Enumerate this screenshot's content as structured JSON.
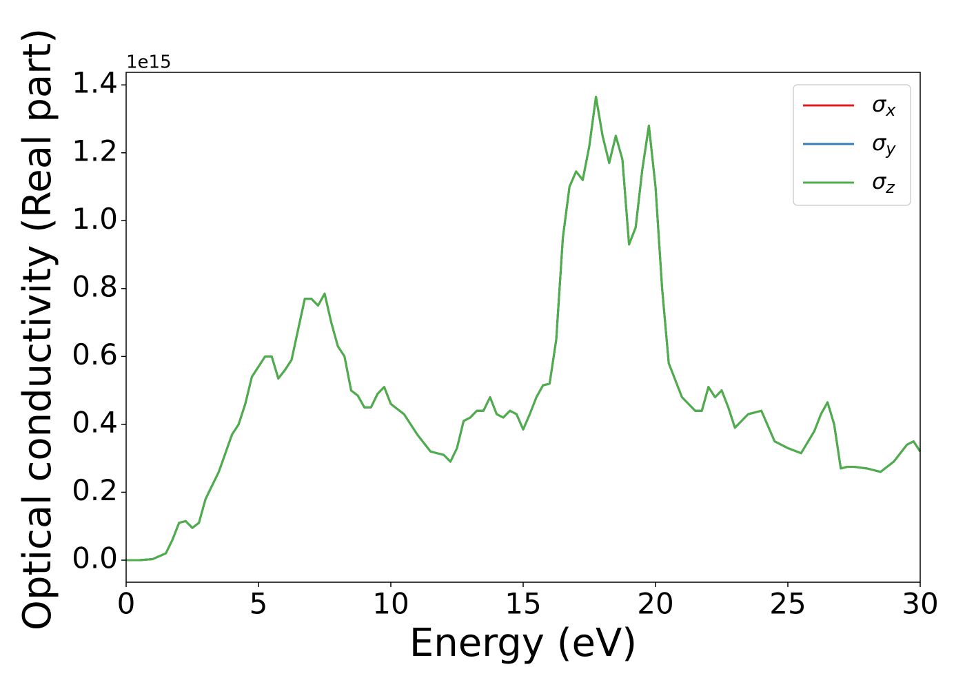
{
  "chart_data": {
    "type": "line",
    "xlabel": "Energy (eV)",
    "ylabel": "Optical conductivity (Real part)",
    "y_offset_label": "1e15",
    "x": [
      0,
      0.5,
      1,
      1.5,
      1.75,
      2,
      2.25,
      2.5,
      2.75,
      3,
      3.5,
      4,
      4.25,
      4.5,
      4.75,
      5,
      5.25,
      5.5,
      5.75,
      6,
      6.25,
      6.5,
      6.75,
      7,
      7.25,
      7.5,
      7.75,
      8,
      8.25,
      8.5,
      8.75,
      9,
      9.25,
      9.5,
      9.75,
      10,
      10.5,
      11,
      11.5,
      12,
      12.25,
      12.5,
      12.75,
      13,
      13.25,
      13.5,
      13.75,
      14,
      14.25,
      14.5,
      14.75,
      15,
      15.25,
      15.5,
      15.75,
      16,
      16.25,
      16.5,
      16.75,
      17,
      17.25,
      17.5,
      17.75,
      18,
      18.25,
      18.5,
      18.75,
      19,
      19.25,
      19.5,
      19.75,
      20,
      20.25,
      20.5,
      21,
      21.5,
      21.75,
      22,
      22.25,
      22.5,
      22.75,
      23,
      23.5,
      24,
      24.5,
      25,
      25.5,
      26,
      26.25,
      26.5,
      26.75,
      27,
      27.25,
      27.5,
      28,
      28.5,
      29,
      29.5,
      29.75,
      30
    ],
    "series": [
      {
        "name": "σx",
        "color": "#e41a1c",
        "values": [
          0,
          0,
          0.003,
          0.02,
          0.06,
          0.11,
          0.115,
          0.095,
          0.11,
          0.18,
          0.26,
          0.37,
          0.4,
          0.46,
          0.54,
          0.57,
          0.6,
          0.6,
          0.535,
          0.56,
          0.59,
          0.68,
          0.77,
          0.77,
          0.75,
          0.785,
          0.7,
          0.63,
          0.6,
          0.5,
          0.485,
          0.45,
          0.45,
          0.49,
          0.51,
          0.46,
          0.43,
          0.37,
          0.32,
          0.31,
          0.29,
          0.33,
          0.41,
          0.42,
          0.44,
          0.44,
          0.48,
          0.43,
          0.42,
          0.44,
          0.43,
          0.385,
          0.43,
          0.48,
          0.515,
          0.52,
          0.65,
          0.95,
          1.1,
          1.145,
          1.12,
          1.22,
          1.365,
          1.25,
          1.17,
          1.25,
          1.18,
          0.93,
          0.98,
          1.15,
          1.28,
          1.1,
          0.8,
          0.58,
          0.48,
          0.44,
          0.44,
          0.51,
          0.48,
          0.5,
          0.45,
          0.39,
          0.43,
          0.44,
          0.35,
          0.33,
          0.315,
          0.38,
          0.43,
          0.465,
          0.4,
          0.27,
          0.275,
          0.275,
          0.27,
          0.26,
          0.29,
          0.34,
          0.35,
          0.32
        ]
      },
      {
        "name": "σy",
        "color": "#377eb8",
        "values": [
          0,
          0,
          0.003,
          0.02,
          0.06,
          0.11,
          0.115,
          0.095,
          0.11,
          0.18,
          0.26,
          0.37,
          0.4,
          0.46,
          0.54,
          0.57,
          0.6,
          0.6,
          0.535,
          0.56,
          0.59,
          0.68,
          0.77,
          0.77,
          0.75,
          0.785,
          0.7,
          0.63,
          0.6,
          0.5,
          0.485,
          0.45,
          0.45,
          0.49,
          0.51,
          0.46,
          0.43,
          0.37,
          0.32,
          0.31,
          0.29,
          0.33,
          0.41,
          0.42,
          0.44,
          0.44,
          0.48,
          0.43,
          0.42,
          0.44,
          0.43,
          0.385,
          0.43,
          0.48,
          0.515,
          0.52,
          0.65,
          0.95,
          1.1,
          1.145,
          1.12,
          1.22,
          1.365,
          1.25,
          1.17,
          1.25,
          1.18,
          0.93,
          0.98,
          1.15,
          1.28,
          1.1,
          0.8,
          0.58,
          0.48,
          0.44,
          0.44,
          0.51,
          0.48,
          0.5,
          0.45,
          0.39,
          0.43,
          0.44,
          0.35,
          0.33,
          0.315,
          0.38,
          0.43,
          0.465,
          0.4,
          0.27,
          0.275,
          0.275,
          0.27,
          0.26,
          0.29,
          0.34,
          0.35,
          0.32
        ]
      },
      {
        "name": "σz",
        "color": "#4daf4a",
        "values": [
          0,
          0,
          0.003,
          0.02,
          0.06,
          0.11,
          0.115,
          0.095,
          0.11,
          0.18,
          0.26,
          0.37,
          0.4,
          0.46,
          0.54,
          0.57,
          0.6,
          0.6,
          0.535,
          0.56,
          0.59,
          0.68,
          0.77,
          0.77,
          0.75,
          0.785,
          0.7,
          0.63,
          0.6,
          0.5,
          0.485,
          0.45,
          0.45,
          0.49,
          0.51,
          0.46,
          0.43,
          0.37,
          0.32,
          0.31,
          0.29,
          0.33,
          0.41,
          0.42,
          0.44,
          0.44,
          0.48,
          0.43,
          0.42,
          0.44,
          0.43,
          0.385,
          0.43,
          0.48,
          0.515,
          0.52,
          0.65,
          0.95,
          1.1,
          1.145,
          1.12,
          1.22,
          1.365,
          1.25,
          1.17,
          1.25,
          1.18,
          0.93,
          0.98,
          1.15,
          1.28,
          1.1,
          0.8,
          0.58,
          0.48,
          0.44,
          0.44,
          0.51,
          0.48,
          0.5,
          0.45,
          0.39,
          0.43,
          0.44,
          0.35,
          0.33,
          0.315,
          0.38,
          0.43,
          0.465,
          0.4,
          0.27,
          0.275,
          0.275,
          0.27,
          0.26,
          0.29,
          0.34,
          0.35,
          0.32
        ]
      }
    ],
    "xlim": [
      0,
      30
    ],
    "xticks": [
      0,
      5,
      10,
      15,
      20,
      25,
      30
    ],
    "ylim": [
      -0.065,
      1.437
    ],
    "yticks": [
      {
        "value": 0,
        "label": "0.0"
      },
      0.2,
      0.4,
      0.6,
      0.8,
      {
        "value": 1,
        "label": "1.0"
      },
      1.2,
      1.4
    ],
    "legend": "upper right",
    "grid": false
  }
}
